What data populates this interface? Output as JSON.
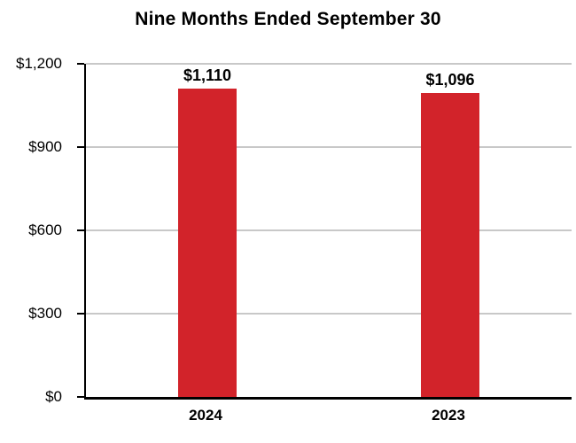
{
  "chart_data": {
    "type": "bar",
    "title": "Nine Months Ended September 30",
    "categories": [
      "2024",
      "2023"
    ],
    "values": [
      1110,
      1096
    ],
    "value_labels": [
      "$1,110",
      "$1,096"
    ],
    "ytick_labels": [
      "$1,200",
      "$900",
      "$600",
      "$300",
      "$0"
    ],
    "ylim": [
      0,
      1200
    ],
    "grid": true,
    "legend": false,
    "bar_color": "#d2232a",
    "gridline_color": "#c8c8c8",
    "axis_color": "#000000",
    "xlabel": "",
    "ylabel": ""
  }
}
